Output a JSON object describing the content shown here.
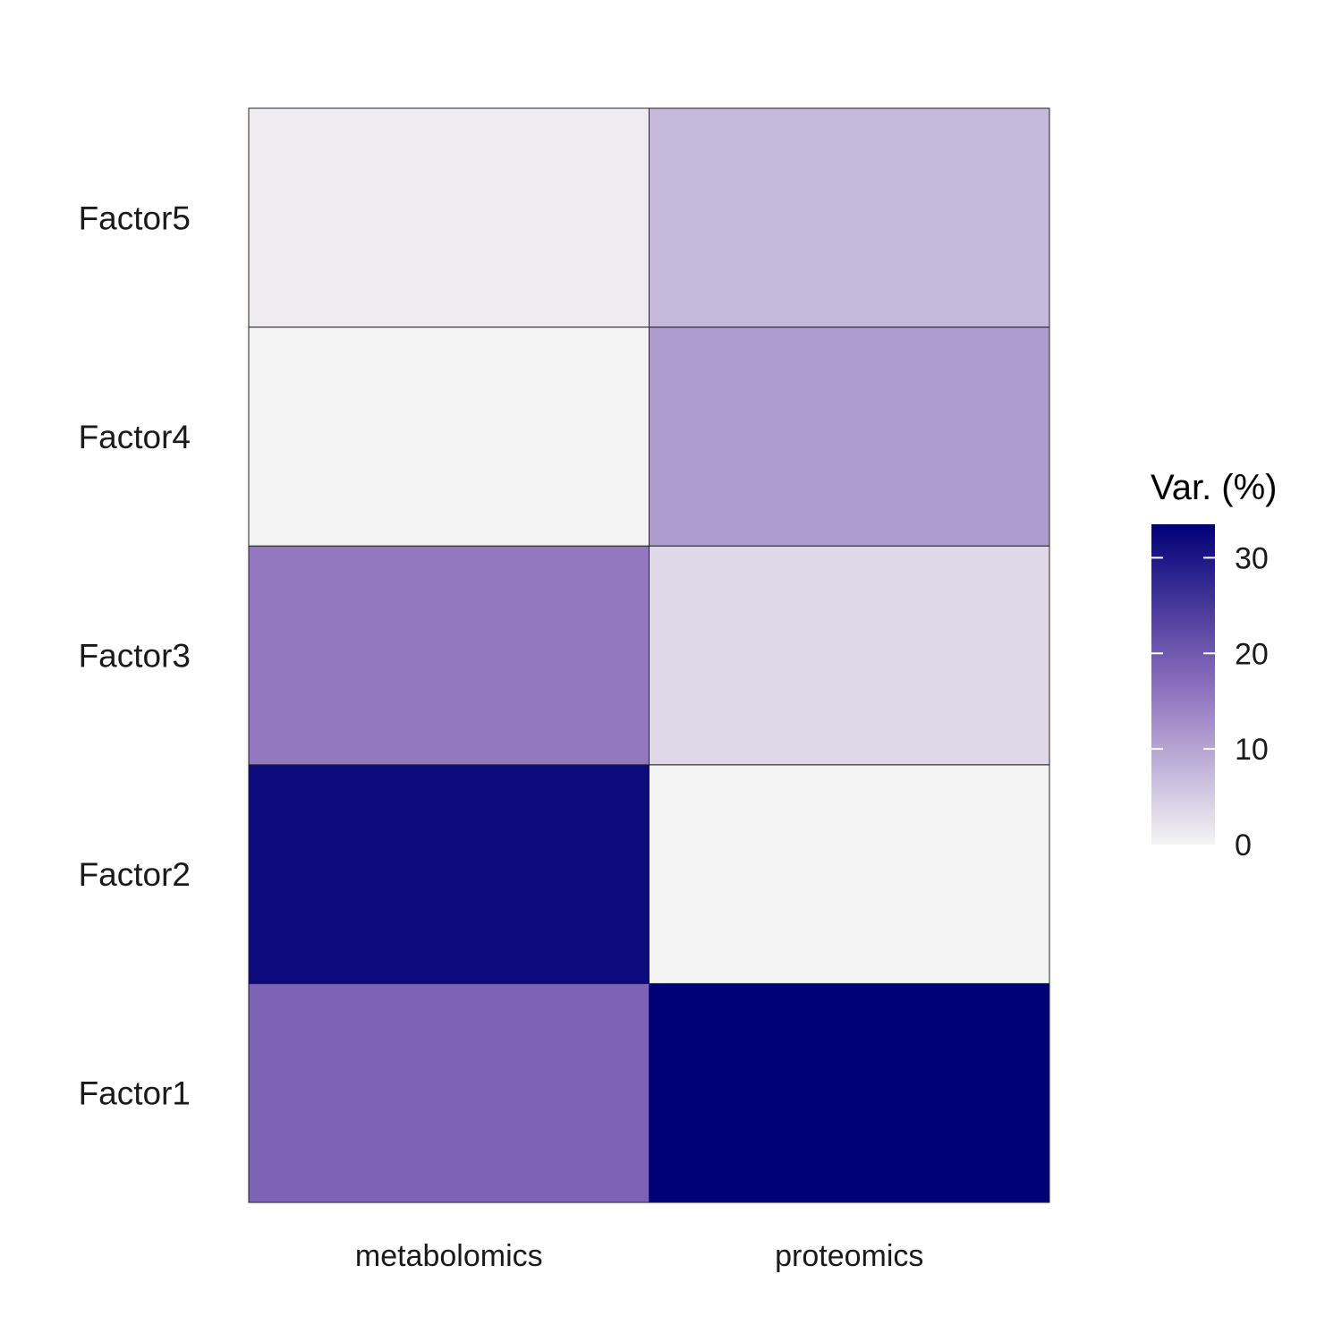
{
  "chart_data": {
    "type": "heatmap",
    "title": "",
    "xlabel": "",
    "ylabel": "",
    "x_categories": [
      "metabolomics",
      "proteomics"
    ],
    "y_categories": [
      "Factor1",
      "Factor2",
      "Factor3",
      "Factor4",
      "Factor5"
    ],
    "values": [
      [
        18.5,
        33.5
      ],
      [
        32.0,
        0.0
      ],
      [
        15.5,
        3.5
      ],
      [
        0.0,
        11.0
      ],
      [
        1.0,
        7.5
      ]
    ],
    "color_scale": {
      "low": "#f4f4f4",
      "mid": "#8b6ebc",
      "high": "#000077",
      "range": [
        0,
        33.5
      ]
    },
    "grid": false,
    "legend": {
      "title": "Var. (%)",
      "placement": "right",
      "ticks": [
        "0",
        "10",
        "20",
        "30"
      ],
      "tick_values": [
        0,
        10,
        20,
        30
      ]
    }
  }
}
